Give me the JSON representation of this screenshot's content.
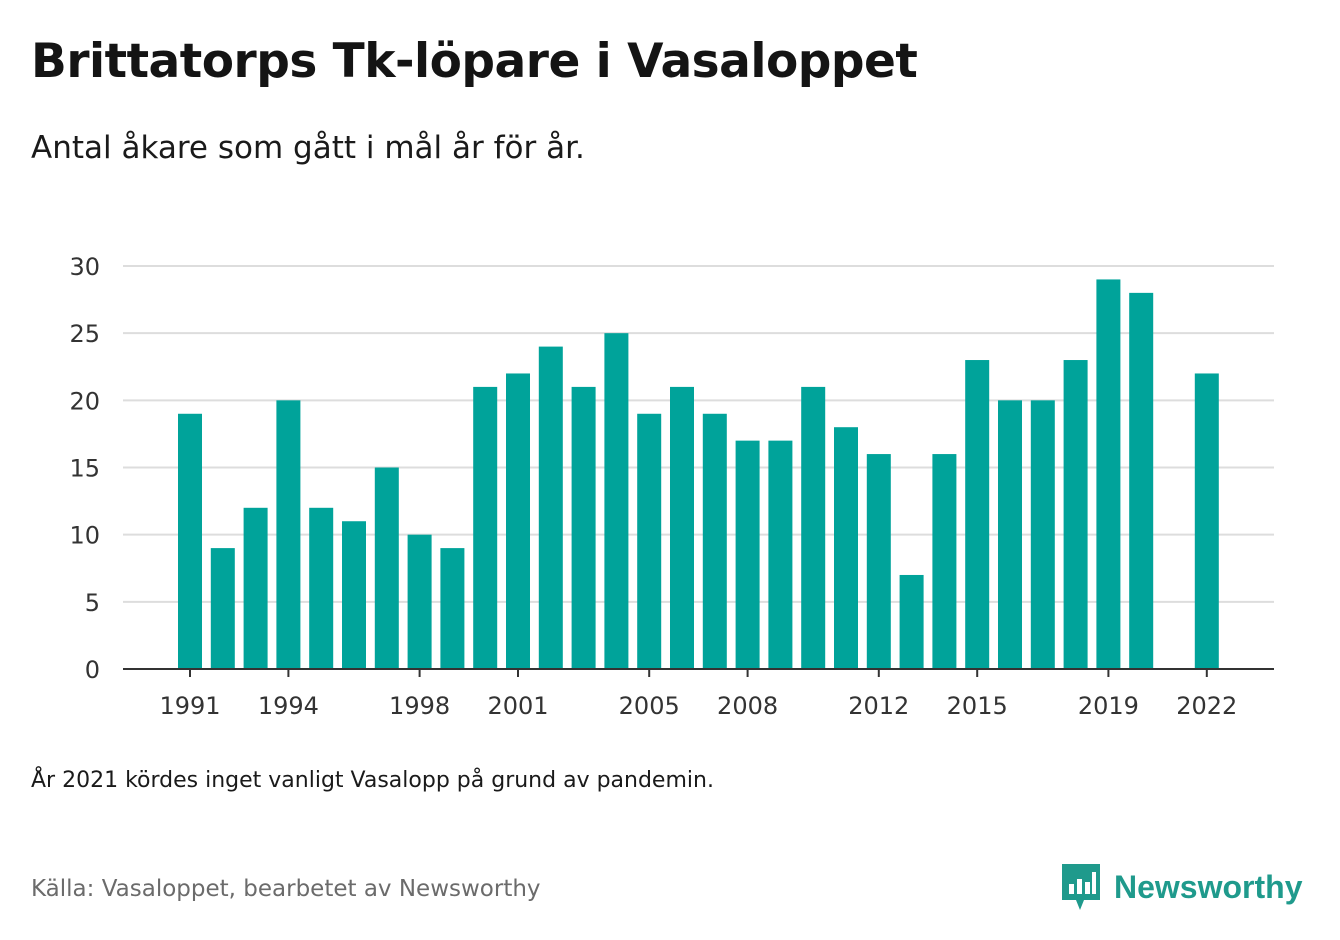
{
  "title": "Brittatorps Tk-löpare i Vasaloppet",
  "subtitle": "Antal åkare som gått i mål år för år.",
  "note": "År 2021 kördes inget vanligt Vasalopp på grund av pandemin.",
  "source": "Källa: Vasaloppet, bearbetet av Newsworthy",
  "brand": {
    "name": "Newsworthy",
    "color": "#1f9a8c"
  },
  "colors": {
    "bar": "#00a39a",
    "grid": "#dddddd",
    "axis": "#333333"
  },
  "chart_data": {
    "type": "bar",
    "categories": [
      "1991",
      "1992",
      "1993",
      "1994",
      "1995",
      "1996",
      "1997",
      "1998",
      "1999",
      "2000",
      "2001",
      "2002",
      "2003",
      "2004",
      "2005",
      "2006",
      "2007",
      "2008",
      "2009",
      "2010",
      "2011",
      "2012",
      "2013",
      "2014",
      "2015",
      "2016",
      "2017",
      "2018",
      "2019",
      "2020",
      "2021",
      "2022"
    ],
    "values": [
      19,
      9,
      12,
      20,
      12,
      11,
      15,
      10,
      9,
      21,
      22,
      24,
      21,
      25,
      19,
      21,
      19,
      17,
      17,
      21,
      18,
      16,
      7,
      16,
      23,
      20,
      20,
      23,
      29,
      28,
      null,
      22
    ],
    "x_tick_labels": [
      "1991",
      "1994",
      "1998",
      "2001",
      "2005",
      "2008",
      "2012",
      "2015",
      "2019",
      "2022"
    ],
    "y_ticks": [
      0,
      5,
      10,
      15,
      20,
      25,
      30
    ],
    "ylim": [
      0,
      30
    ],
    "title": "Brittatorps Tk-löpare i Vasaloppet",
    "xlabel": "",
    "ylabel": "",
    "grid": true
  }
}
